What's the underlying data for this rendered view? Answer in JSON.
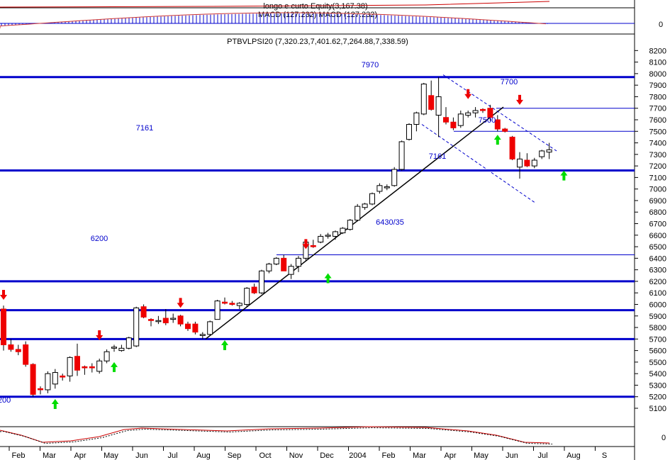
{
  "colors": {
    "background": "#ffffff",
    "axis_text": "#000000",
    "level_line": "#0000cc",
    "label_blue": "#0000cc",
    "up_candle_fill": "#ffffff",
    "down_candle_fill": "#ee0000",
    "up_arrow": "#00dd00",
    "down_arrow": "#ee0000",
    "trend_line": "#000000",
    "channel_dash": "#0000cc",
    "macd_line": "#cc3333",
    "macd_hist": "#0000cc",
    "equity_line": "#cc0000",
    "osc_line1": "#cc0000",
    "osc_line2": "#000000"
  },
  "top_panel": {
    "label_equity": "longo e curto Equity(3,167.38)",
    "label_macd": "MACD (127.232) MACD (127.232)",
    "axis_zero": "0"
  },
  "bottom_panel": {
    "axis_zero": "0"
  },
  "chart_data": {
    "type": "candlestick",
    "title": "PTBVLPSI20 (7,320.23,7,401.62,7,264.88,7,338.59)",
    "ylim": [
      5050,
      8280
    ],
    "y_ticks": [
      5100,
      5200,
      5300,
      5400,
      5500,
      5600,
      5700,
      5800,
      5900,
      6000,
      6100,
      6200,
      6300,
      6400,
      6500,
      6600,
      6700,
      6800,
      6900,
      7000,
      7100,
      7200,
      7300,
      7400,
      7500,
      7600,
      7700,
      7800,
      7900,
      8000,
      8100,
      8200
    ],
    "x_labels": [
      "Feb",
      "Mar",
      "Apr",
      "May",
      "Jun",
      "Jul",
      "Aug",
      "Sep",
      "Oct",
      "Nov",
      "Dec",
      "2004",
      "Feb",
      "Mar",
      "Apr",
      "May",
      "Jun",
      "Jul",
      "Aug",
      "S"
    ],
    "grid": false,
    "levels": [
      {
        "value": 7970,
        "label": "7970"
      },
      {
        "value": 7161,
        "label": "7161"
      },
      {
        "value": 6200,
        "label": "6200"
      },
      {
        "value": 5950,
        "label": ""
      },
      {
        "value": 5700,
        "label": ""
      },
      {
        "value": 5200,
        "label": "200"
      }
    ],
    "thin_levels": [
      {
        "value": 7700,
        "label": "7700"
      },
      {
        "value": 7500,
        "label": "7500"
      },
      {
        "value": 6430,
        "label": "6430/35"
      }
    ],
    "extra_labels": [
      {
        "text": "7161",
        "value": 7161
      }
    ],
    "candles": [
      {
        "o": 5960,
        "h": 5990,
        "l": 5600,
        "c": 5650
      },
      {
        "o": 5650,
        "h": 5700,
        "l": 5590,
        "c": 5610
      },
      {
        "o": 5610,
        "h": 5650,
        "l": 5560,
        "c": 5590
      },
      {
        "o": 5650,
        "h": 5680,
        "l": 5460,
        "c": 5480
      },
      {
        "o": 5480,
        "h": 5490,
        "l": 5200,
        "c": 5220
      },
      {
        "o": 5270,
        "h": 5290,
        "l": 5220,
        "c": 5260
      },
      {
        "o": 5260,
        "h": 5420,
        "l": 5230,
        "c": 5400
      },
      {
        "o": 5310,
        "h": 5440,
        "l": 5270,
        "c": 5410
      },
      {
        "o": 5380,
        "h": 5400,
        "l": 5340,
        "c": 5370
      },
      {
        "o": 5380,
        "h": 5550,
        "l": 5330,
        "c": 5540
      },
      {
        "o": 5550,
        "h": 5660,
        "l": 5380,
        "c": 5430
      },
      {
        "o": 5460,
        "h": 5470,
        "l": 5390,
        "c": 5450
      },
      {
        "o": 5460,
        "h": 5490,
        "l": 5410,
        "c": 5450
      },
      {
        "o": 5420,
        "h": 5530,
        "l": 5400,
        "c": 5510
      },
      {
        "o": 5510,
        "h": 5610,
        "l": 5490,
        "c": 5590
      },
      {
        "o": 5620,
        "h": 5650,
        "l": 5590,
        "c": 5630
      },
      {
        "o": 5600,
        "h": 5650,
        "l": 5590,
        "c": 5620
      },
      {
        "o": 5620,
        "h": 5720,
        "l": 5610,
        "c": 5710
      },
      {
        "o": 5640,
        "h": 5980,
        "l": 5630,
        "c": 5970
      },
      {
        "o": 5980,
        "h": 6000,
        "l": 5880,
        "c": 5890
      },
      {
        "o": 5870,
        "h": 5880,
        "l": 5810,
        "c": 5860
      },
      {
        "o": 5860,
        "h": 5900,
        "l": 5830,
        "c": 5860
      },
      {
        "o": 5880,
        "h": 5960,
        "l": 5820,
        "c": 5840
      },
      {
        "o": 5870,
        "h": 5920,
        "l": 5840,
        "c": 5880
      },
      {
        "o": 5900,
        "h": 5910,
        "l": 5810,
        "c": 5830
      },
      {
        "o": 5830,
        "h": 5850,
        "l": 5770,
        "c": 5790
      },
      {
        "o": 5830,
        "h": 5850,
        "l": 5740,
        "c": 5760
      },
      {
        "o": 5730,
        "h": 5760,
        "l": 5700,
        "c": 5740
      },
      {
        "o": 5740,
        "h": 5860,
        "l": 5730,
        "c": 5850
      },
      {
        "o": 5870,
        "h": 6040,
        "l": 5870,
        "c": 6030
      },
      {
        "o": 6020,
        "h": 6060,
        "l": 6000,
        "c": 6010
      },
      {
        "o": 6010,
        "h": 6030,
        "l": 5990,
        "c": 6000
      },
      {
        "o": 5990,
        "h": 6020,
        "l": 5960,
        "c": 6010
      },
      {
        "o": 6000,
        "h": 6150,
        "l": 5980,
        "c": 6140
      },
      {
        "o": 6150,
        "h": 6180,
        "l": 6090,
        "c": 6100
      },
      {
        "o": 6100,
        "h": 6300,
        "l": 6090,
        "c": 6290
      },
      {
        "o": 6290,
        "h": 6360,
        "l": 6270,
        "c": 6350
      },
      {
        "o": 6350,
        "h": 6410,
        "l": 6340,
        "c": 6400
      },
      {
        "o": 6400,
        "h": 6430,
        "l": 6290,
        "c": 6290
      },
      {
        "o": 6260,
        "h": 6350,
        "l": 6220,
        "c": 6330
      },
      {
        "o": 6330,
        "h": 6420,
        "l": 6280,
        "c": 6400
      },
      {
        "o": 6400,
        "h": 6550,
        "l": 6380,
        "c": 6540
      },
      {
        "o": 6510,
        "h": 6560,
        "l": 6490,
        "c": 6500
      },
      {
        "o": 6540,
        "h": 6610,
        "l": 6530,
        "c": 6590
      },
      {
        "o": 6600,
        "h": 6620,
        "l": 6570,
        "c": 6600
      },
      {
        "o": 6590,
        "h": 6640,
        "l": 6560,
        "c": 6630
      },
      {
        "o": 6620,
        "h": 6670,
        "l": 6610,
        "c": 6660
      },
      {
        "o": 6650,
        "h": 6740,
        "l": 6640,
        "c": 6730
      },
      {
        "o": 6730,
        "h": 6870,
        "l": 6720,
        "c": 6850
      },
      {
        "o": 6840,
        "h": 6880,
        "l": 6820,
        "c": 6870
      },
      {
        "o": 6870,
        "h": 6970,
        "l": 6860,
        "c": 6960
      },
      {
        "o": 6980,
        "h": 7050,
        "l": 6960,
        "c": 7030
      },
      {
        "o": 7010,
        "h": 7040,
        "l": 6990,
        "c": 7020
      },
      {
        "o": 7030,
        "h": 7190,
        "l": 7020,
        "c": 7170
      },
      {
        "o": 7170,
        "h": 7420,
        "l": 7160,
        "c": 7410
      },
      {
        "o": 7430,
        "h": 7570,
        "l": 7420,
        "c": 7560
      },
      {
        "o": 7560,
        "h": 7670,
        "l": 7500,
        "c": 7660
      },
      {
        "o": 7650,
        "h": 7920,
        "l": 7640,
        "c": 7910
      },
      {
        "o": 7810,
        "h": 7940,
        "l": 7680,
        "c": 7690
      },
      {
        "o": 7640,
        "h": 7970,
        "l": 7450,
        "c": 7800
      },
      {
        "o": 7620,
        "h": 7710,
        "l": 7560,
        "c": 7580
      },
      {
        "o": 7580,
        "h": 7620,
        "l": 7510,
        "c": 7530
      },
      {
        "o": 7550,
        "h": 7680,
        "l": 7530,
        "c": 7650
      },
      {
        "o": 7640,
        "h": 7680,
        "l": 7620,
        "c": 7660
      },
      {
        "o": 7660,
        "h": 7710,
        "l": 7620,
        "c": 7680
      },
      {
        "o": 7690,
        "h": 7700,
        "l": 7660,
        "c": 7680
      },
      {
        "o": 7700,
        "h": 7730,
        "l": 7590,
        "c": 7620
      },
      {
        "o": 7600,
        "h": 7640,
        "l": 7500,
        "c": 7520
      },
      {
        "o": 7520,
        "h": 7530,
        "l": 7490,
        "c": 7500
      },
      {
        "o": 7450,
        "h": 7460,
        "l": 7250,
        "c": 7260
      },
      {
        "o": 7190,
        "h": 7320,
        "l": 7090,
        "c": 7260
      },
      {
        "o": 7250,
        "h": 7310,
        "l": 7190,
        "c": 7200
      },
      {
        "o": 7200,
        "h": 7270,
        "l": 7180,
        "c": 7250
      },
      {
        "o": 7280,
        "h": 7340,
        "l": 7260,
        "c": 7330
      },
      {
        "o": 7320,
        "h": 7400,
        "l": 7260,
        "c": 7340
      }
    ],
    "up_arrows": [
      {
        "index": 7,
        "value": 5180
      },
      {
        "index": 15,
        "value": 5500
      },
      {
        "index": 30,
        "value": 5690
      },
      {
        "index": 44,
        "value": 6270
      },
      {
        "index": 67,
        "value": 7470
      },
      {
        "index": 76,
        "value": 7160
      }
    ],
    "down_arrows": [
      {
        "index": 0,
        "value": 6040
      },
      {
        "index": 13,
        "value": 5690
      },
      {
        "index": 24,
        "value": 5970
      },
      {
        "index": 41,
        "value": 6480
      },
      {
        "index": 63,
        "value": 7780
      },
      {
        "index": 70,
        "value": 7730
      }
    ]
  }
}
